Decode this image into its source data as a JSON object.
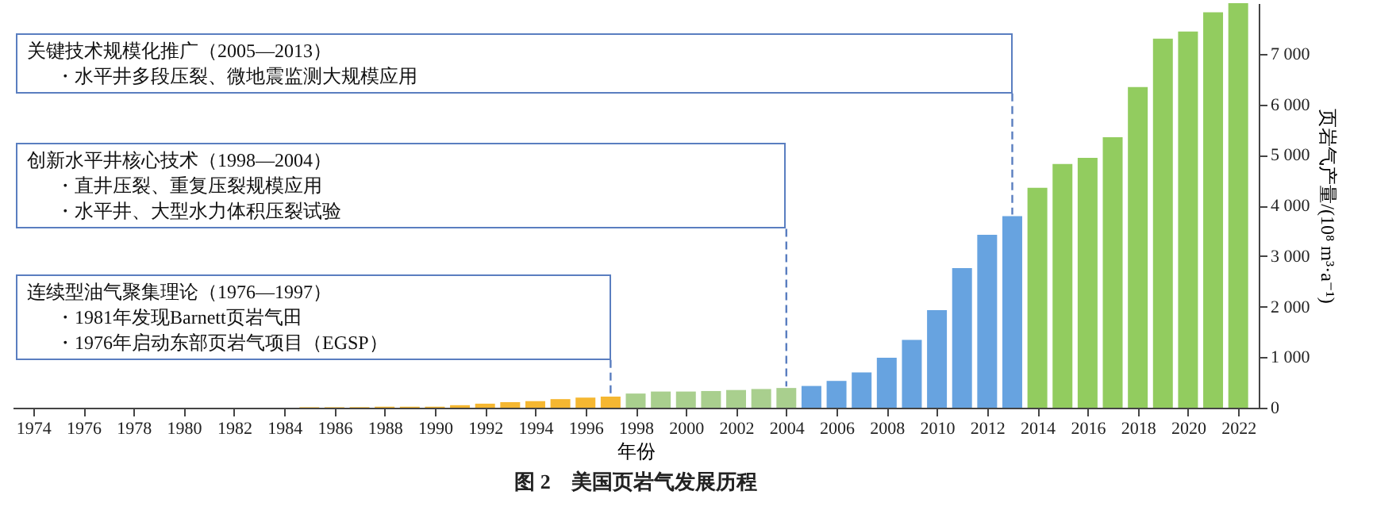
{
  "chart_data": {
    "type": "bar",
    "title": "图 2　美国页岩气发展历程",
    "xlabel": "年份",
    "ylabel": "页岩气产量/(10⁸ m³·a⁻¹)",
    "x": [
      1974,
      1975,
      1976,
      1977,
      1978,
      1979,
      1980,
      1981,
      1982,
      1983,
      1984,
      1985,
      1986,
      1987,
      1988,
      1989,
      1990,
      1991,
      1992,
      1993,
      1994,
      1995,
      1996,
      1997,
      1998,
      1999,
      2000,
      2001,
      2002,
      2003,
      2004,
      2005,
      2006,
      2007,
      2008,
      2009,
      2010,
      2011,
      2012,
      2013,
      2014,
      2015,
      2016,
      2017,
      2018,
      2019,
      2020,
      2021,
      2022
    ],
    "values": [
      0,
      0,
      0,
      0,
      0,
      0,
      0,
      0,
      0,
      0,
      0,
      10,
      10,
      10,
      20,
      20,
      20,
      50,
      80,
      110,
      130,
      170,
      200,
      220,
      280,
      320,
      320,
      330,
      350,
      370,
      390,
      430,
      530,
      700,
      990,
      1340,
      1930,
      2760,
      3420,
      3790,
      4350,
      4820,
      4940,
      5350,
      6340,
      7300,
      7440,
      7820,
      8000
    ],
    "colors": [
      "#f5b731",
      "#f5b731",
      "#f5b731",
      "#f5b731",
      "#f5b731",
      "#f5b731",
      "#f5b731",
      "#f5b731",
      "#f5b731",
      "#f5b731",
      "#f5b731",
      "#f5b731",
      "#f5b731",
      "#f5b731",
      "#f5b731",
      "#f5b731",
      "#f5b731",
      "#f5b731",
      "#f5b731",
      "#f5b731",
      "#f5b731",
      "#f5b731",
      "#f5b731",
      "#f5b731",
      "#a9cf8e",
      "#a9cf8e",
      "#a9cf8e",
      "#a9cf8e",
      "#a9cf8e",
      "#a9cf8e",
      "#a9cf8e",
      "#67a3e0",
      "#67a3e0",
      "#67a3e0",
      "#67a3e0",
      "#67a3e0",
      "#67a3e0",
      "#67a3e0",
      "#67a3e0",
      "#67a3e0",
      "#92cc5f",
      "#92cc5f",
      "#92cc5f",
      "#92cc5f",
      "#92cc5f",
      "#92cc5f",
      "#92cc5f",
      "#92cc5f",
      "#92cc5f"
    ],
    "xlim": [
      1973.5,
      2022.5
    ],
    "xticks": [
      1974,
      1976,
      1978,
      1980,
      1982,
      1984,
      1986,
      1988,
      1990,
      1992,
      1994,
      1996,
      1998,
      2000,
      2002,
      2004,
      2006,
      2008,
      2010,
      2012,
      2014,
      2016,
      2018,
      2020,
      2022
    ],
    "ylim": [
      0,
      8000
    ],
    "yticks": [
      0,
      {
        "value": 1000,
        "label": "1 000"
      },
      {
        "value": 2000,
        "label": "2 000"
      },
      {
        "value": 3000,
        "label": "3 000"
      },
      {
        "value": 4000,
        "label": "4 000"
      },
      {
        "value": 5000,
        "label": "5 000"
      },
      {
        "value": 6000,
        "label": "6 000"
      },
      {
        "value": 7000,
        "label": "7 000"
      }
    ],
    "grid": false,
    "annotations": [
      "关键技术规模化推广（2005—2013）",
      "・水平井多段压裂、微地震监测大规模应用",
      "创新水平井核心技术（1998—2004）",
      "・直井压裂、重复压裂规模应用",
      "・水平井、大型水力体积压裂试验",
      "连续型油气聚集理论（1976—1997）",
      "・1981年发现Barnett页岩气田",
      "・1976年启动东部页岩气项目（EGSP）"
    ]
  }
}
